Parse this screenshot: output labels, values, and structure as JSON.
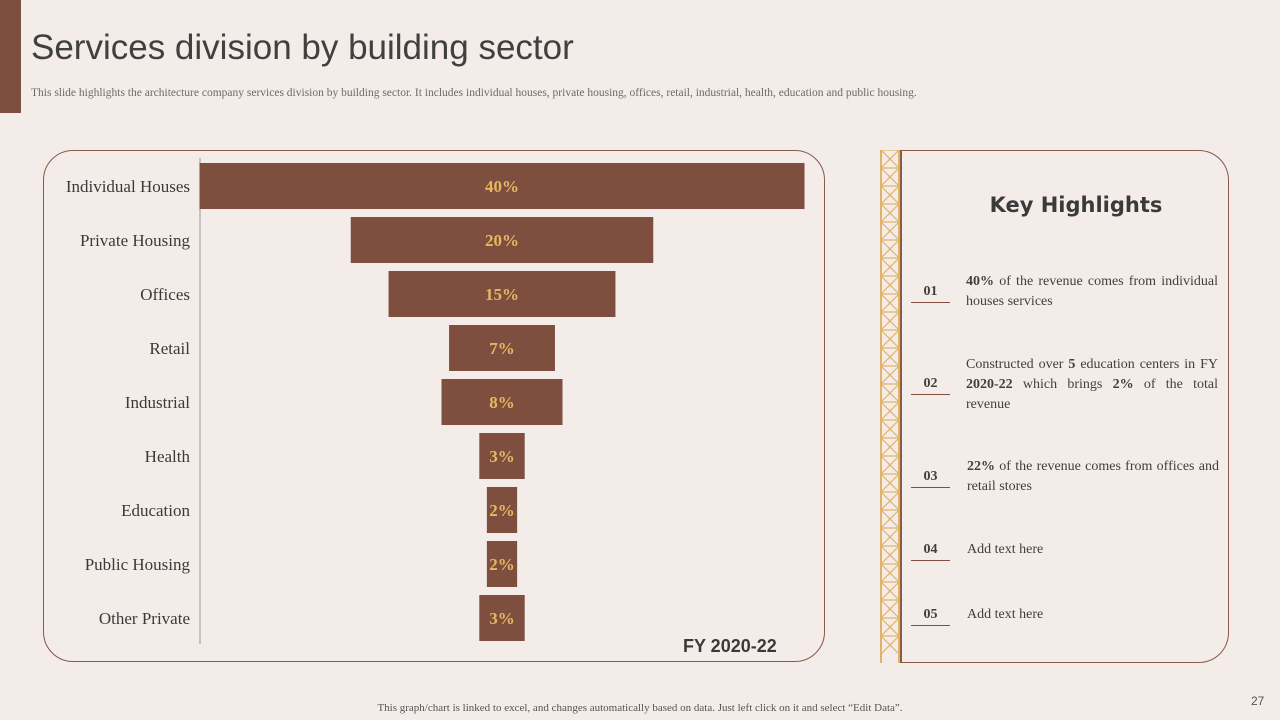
{
  "slide": {
    "title": "Services division by building sector",
    "subtitle": "This slide highlights the architecture company services division by building sector. It includes individual houses, private housing, offices, retail,  industrial, health, education and public housing.",
    "footer_note": "This graph/chart is linked to excel,  and changes automatically based on data. Just left click on it and select “Edit Data”.",
    "page_number": "27"
  },
  "colors": {
    "accent": "#7e4e3f",
    "bar": "#7e4e3f",
    "bar_label": "#e8b860",
    "ladder": "#e0b36a",
    "background": "#f4ece8"
  },
  "chart_data": {
    "type": "bar",
    "orientation": "horizontal-funnel",
    "categories": [
      "Individual Houses",
      "Private Housing",
      "Offices",
      "Retail",
      "Industrial",
      "Health",
      "Education",
      "Public Housing",
      "Other Private"
    ],
    "values": [
      40,
      20,
      15,
      7,
      8,
      3,
      2,
      2,
      3
    ],
    "data_labels": [
      "40%",
      "20%",
      "15%",
      "7%",
      "8%",
      "3%",
      "2%",
      "2%",
      "3%"
    ],
    "unit": "%",
    "caption": "FY 2020-22",
    "legend": "none",
    "grid": false
  },
  "highlights": {
    "title": "Key Highlights",
    "items": [
      {
        "num": "01",
        "bold1": "40%",
        "text1": " of the revenue  comes from individual  houses services"
      },
      {
        "num": "02",
        "text0": "Constructed  over  ",
        "bold1": "5",
        "text1": " education  centers in FY ",
        "bold2": "2020-22",
        "text2": " which  brings  ",
        "bold3": "2%",
        "text3": " of the total revenue"
      },
      {
        "num": "03",
        "bold1": "22%",
        "text1": " of the revenue  comes from  offices and retail  stores"
      },
      {
        "num": "04",
        "text0": "Add text  here"
      },
      {
        "num": "05",
        "text0": "Add text  here"
      }
    ]
  }
}
